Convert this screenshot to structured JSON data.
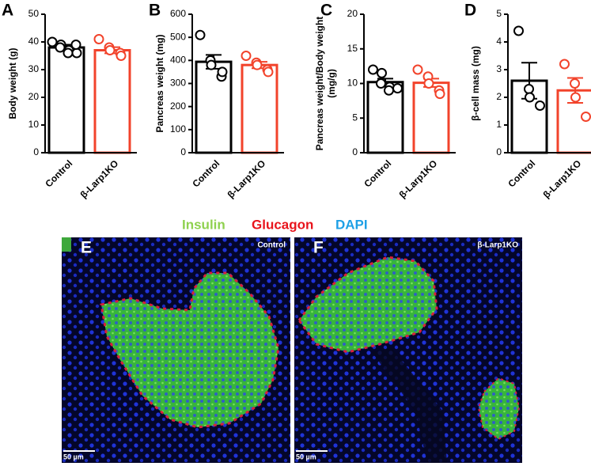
{
  "chart_data": [
    {
      "type": "bar",
      "panel": "A",
      "ylabel": "Body weight (g)",
      "categories": [
        "Control",
        "β-Larp1KO"
      ],
      "values": [
        38,
        37
      ],
      "errors": [
        1,
        1.1
      ],
      "points": [
        [
          40,
          39,
          38,
          37,
          36,
          36,
          39
        ],
        [
          41,
          38,
          37,
          36,
          35
        ]
      ],
      "colors": [
        "#000000",
        "#f2432b"
      ],
      "ylim": [
        0,
        50
      ],
      "yticks": [
        0,
        10,
        20,
        30,
        40,
        50
      ]
    },
    {
      "type": "bar",
      "panel": "B",
      "ylabel": "Pancreas weight (mg)",
      "categories": [
        "Control",
        "β-Larp1KO"
      ],
      "values": [
        394,
        380
      ],
      "errors": [
        30,
        14
      ],
      "points": [
        [
          510,
          400,
          380,
          330,
          350
        ],
        [
          420,
          390,
          380,
          360,
          350
        ]
      ],
      "colors": [
        "#000000",
        "#f2432b"
      ],
      "ylim": [
        0,
        600
      ],
      "yticks": [
        0,
        100,
        200,
        300,
        400,
        500,
        600
      ]
    },
    {
      "type": "bar",
      "panel": "C",
      "ylabel": [
        "Pancreas weight/Body weight",
        "(mg/g)"
      ],
      "categories": [
        "Control",
        "β-Larp1KO"
      ],
      "values": [
        10.2,
        10.1
      ],
      "errors": [
        0.5,
        0.6
      ],
      "points": [
        [
          12,
          11.5,
          10,
          9.5,
          9,
          9.3
        ],
        [
          12,
          11,
          10,
          9,
          8.5
        ]
      ],
      "colors": [
        "#000000",
        "#f2432b"
      ],
      "ylim": [
        0,
        20
      ],
      "yticks": [
        0,
        5,
        10,
        15,
        20
      ]
    },
    {
      "type": "bar",
      "panel": "D",
      "ylabel": "β-cell mass (mg)",
      "categories": [
        "Control",
        "β-Larp1KO"
      ],
      "values": [
        2.6,
        2.25
      ],
      "errors": [
        0.65,
        0.45
      ],
      "points": [
        [
          4.4,
          2.3,
          2.0,
          1.7
        ],
        [
          3.2,
          2.5,
          2.0,
          1.3
        ]
      ],
      "colors": [
        "#000000",
        "#f2432b"
      ],
      "ylim": [
        0,
        5
      ],
      "yticks": [
        0,
        1,
        2,
        3,
        4,
        5
      ]
    }
  ],
  "stain_legend": [
    {
      "text": "Insulin",
      "color": "#8fd14f"
    },
    {
      "text": "Glucagon",
      "color": "#e8141c"
    },
    {
      "text": "DAPI",
      "color": "#1ea0e6"
    }
  ],
  "images": [
    {
      "panel": "E",
      "label": "Control",
      "scale": "50 µm"
    },
    {
      "panel": "F",
      "label": "β-Larp1KO",
      "scale": "50 µm"
    }
  ]
}
